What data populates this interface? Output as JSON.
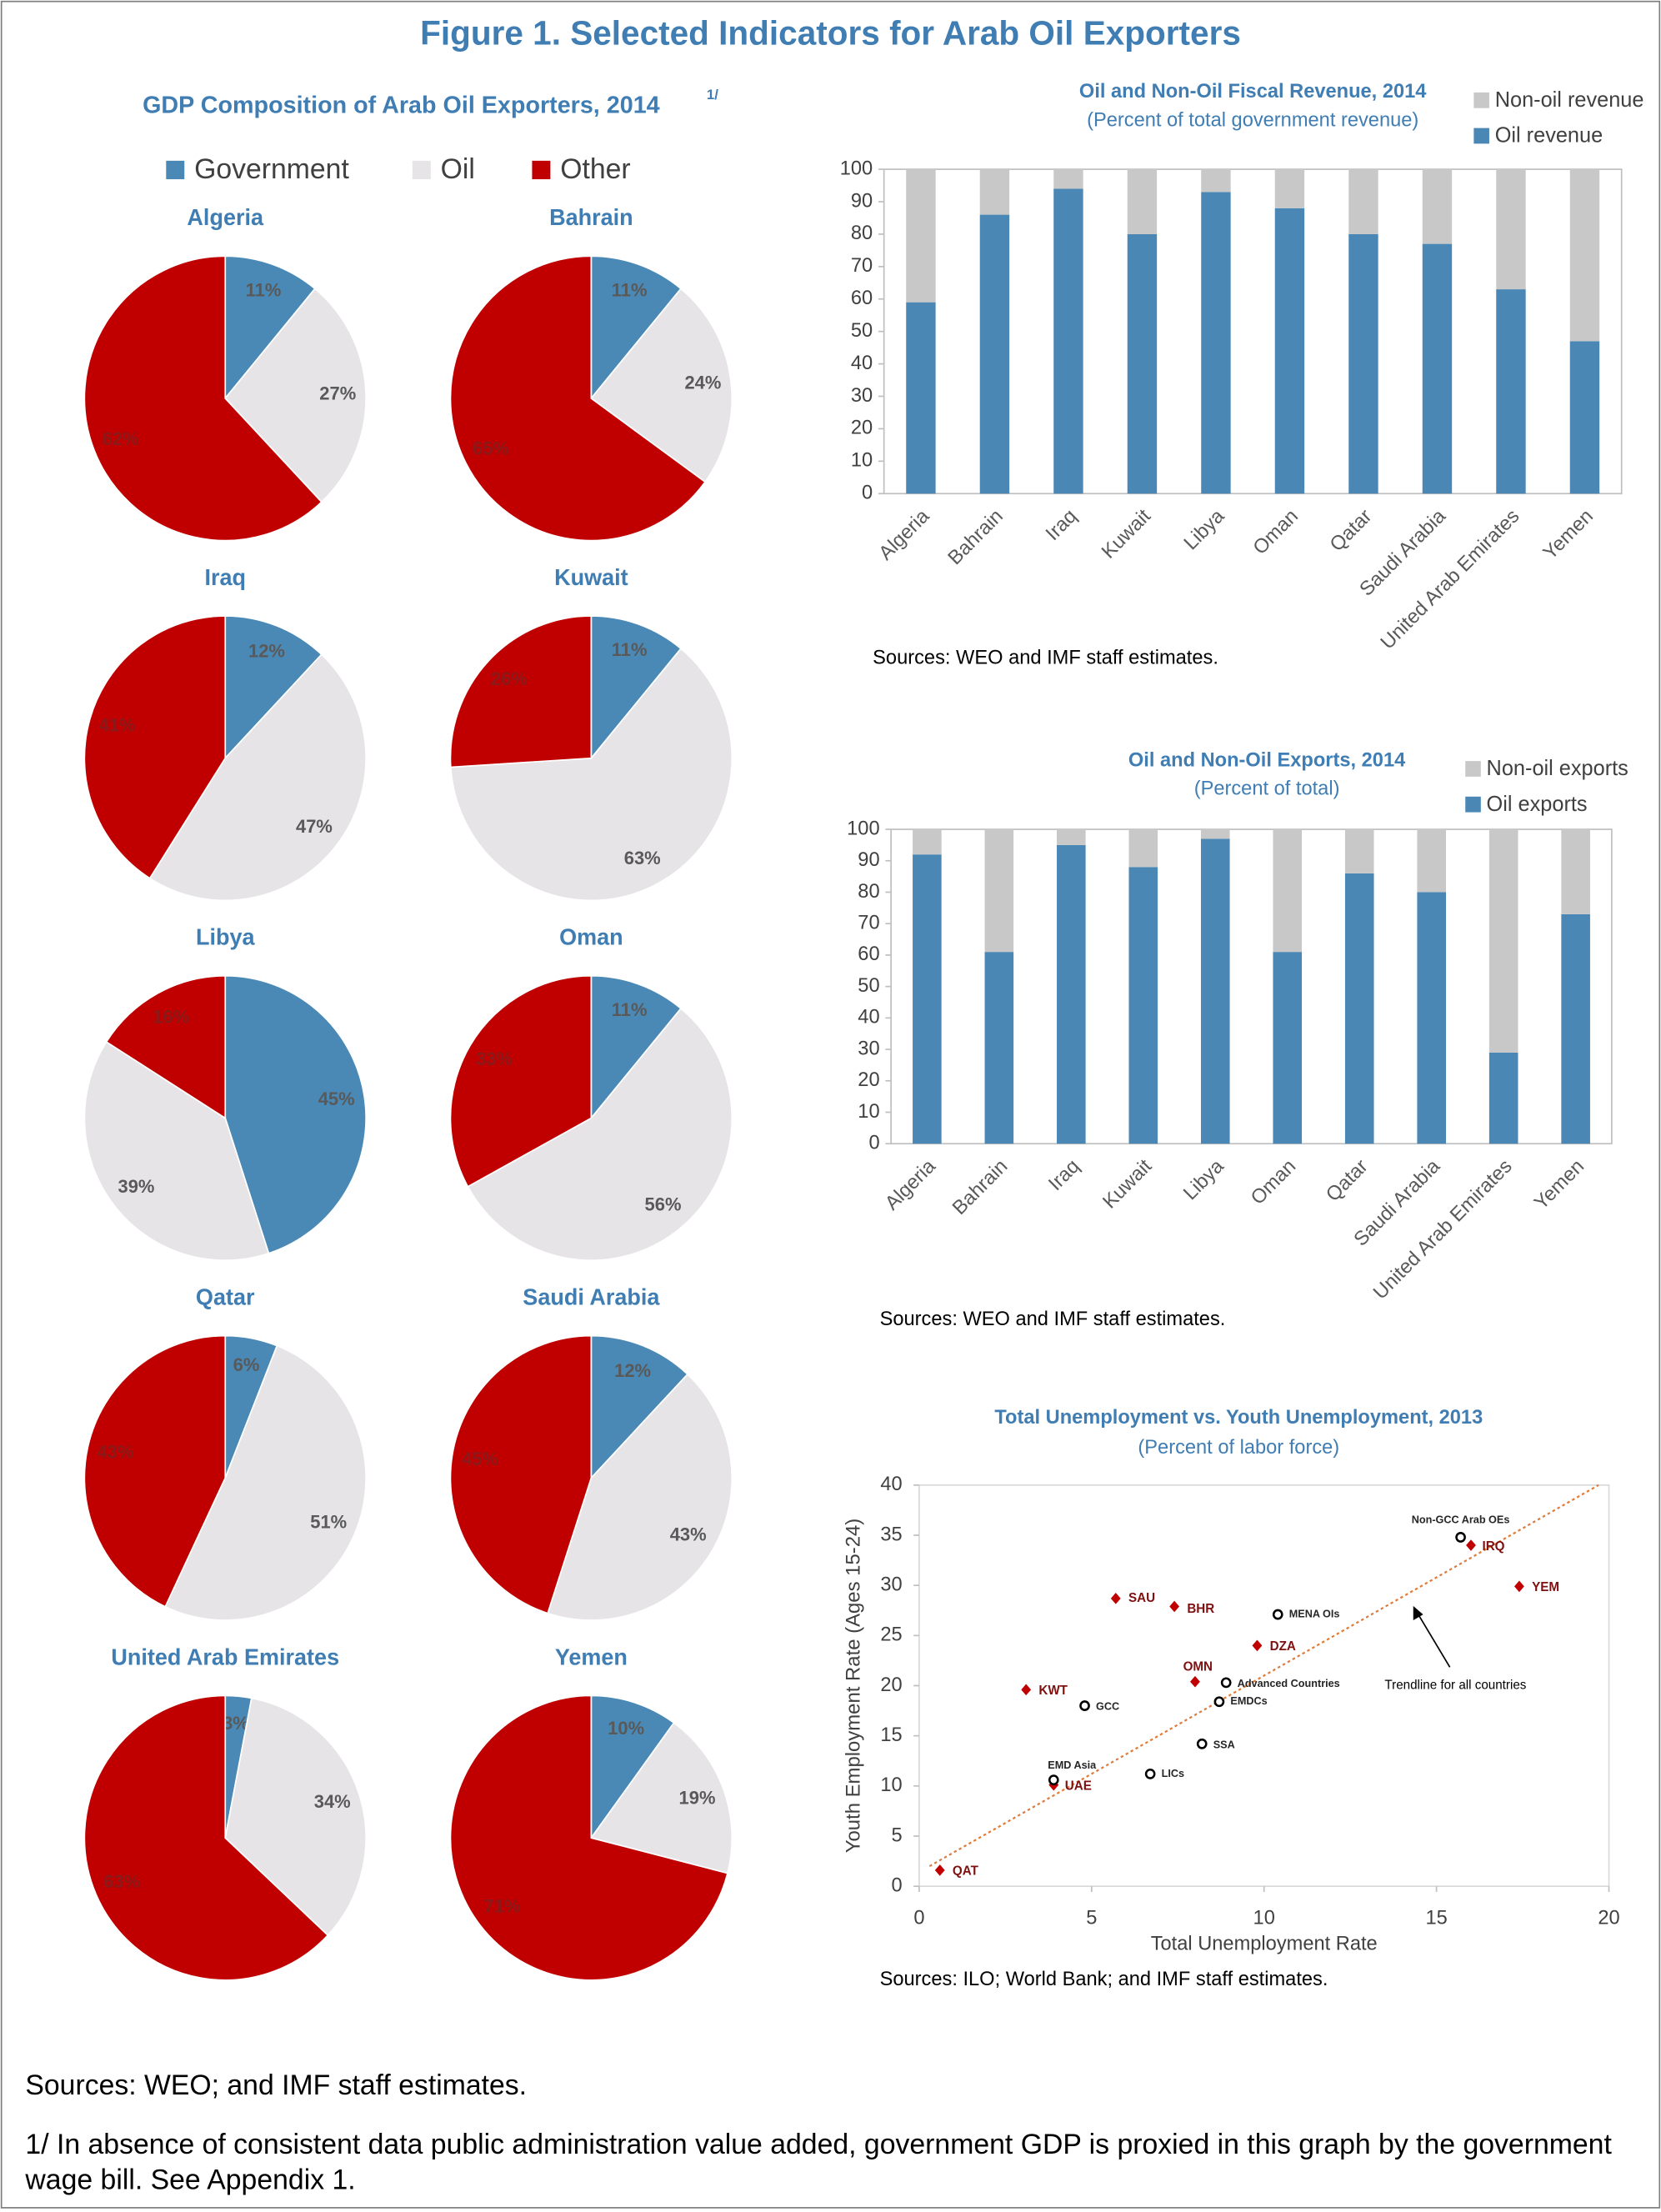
{
  "title": "Figure 1. Selected Indicators for Arab Oil Exporters",
  "notes": [
    "Sources: WEO; and IMF staff estimates.",
    "1/ In absence of consistent data public administration value added, government GDP is proxied in this graph by the government wage bill. See Appendix 1."
  ],
  "chart_data": [
    {
      "type": "pie",
      "title": "GDP Composition of Arab Oil Exporters, 2014",
      "title_note": "1/",
      "labels": [
        "Government",
        "Oil",
        "Other"
      ],
      "colors": [
        "#4a89b5",
        "#e6e4e7",
        "#c00000"
      ],
      "pies": [
        {
          "title": "Algeria",
          "values": [
            11,
            27,
            62
          ],
          "value_labels": [
            "11%",
            "27%",
            "62%"
          ]
        },
        {
          "title": "Bahrain",
          "values": [
            11,
            24,
            65
          ],
          "value_labels": [
            "11%",
            "24%",
            "65%"
          ]
        },
        {
          "title": "Iraq",
          "values": [
            12,
            47,
            41
          ],
          "value_labels": [
            "12%",
            "47%",
            "41%"
          ]
        },
        {
          "title": "Kuwait",
          "values": [
            11,
            63,
            26
          ],
          "value_labels": [
            "11%",
            "63%",
            "26%"
          ]
        },
        {
          "title": "Libya",
          "values": [
            45,
            39,
            16
          ],
          "value_labels": [
            "45%",
            "39%",
            "16%"
          ]
        },
        {
          "title": "Oman",
          "values": [
            11,
            56,
            33
          ],
          "value_labels": [
            "11%",
            "56%",
            "33%"
          ]
        },
        {
          "title": "Qatar",
          "values": [
            6,
            51,
            43
          ],
          "value_labels": [
            "6%",
            "51%",
            "43%"
          ]
        },
        {
          "title": "Saudi Arabia",
          "values": [
            12,
            43,
            45
          ],
          "value_labels": [
            "12%",
            "43%",
            "45%"
          ]
        },
        {
          "title": "United Arab Emirates",
          "values": [
            3,
            34,
            63
          ],
          "value_labels": [
            "3%",
            "34%",
            "63%"
          ]
        },
        {
          "title": "Yemen",
          "values": [
            10,
            19,
            71
          ],
          "value_labels": [
            "10%",
            "19%",
            "71%"
          ]
        }
      ]
    },
    {
      "type": "stacked_bar",
      "title": "Oil and Non-Oil Fiscal Revenue, 2014",
      "subtitle": "(Percent of total government revenue)",
      "categories": [
        "Algeria",
        "Bahrain",
        "Iraq",
        "Kuwait",
        "Libya",
        "Oman",
        "Qatar",
        "Saudi Arabia",
        "United Arab Emirates",
        "Yemen"
      ],
      "series": [
        {
          "name": "Oil revenue",
          "color": "#4a87b4",
          "values": [
            59,
            86,
            94,
            80,
            93,
            88,
            80,
            77,
            63,
            47
          ]
        },
        {
          "name": "Non-oil revenue",
          "color": "#c8c8c8",
          "values": [
            41,
            14,
            6,
            20,
            7,
            12,
            20,
            23,
            37,
            53
          ]
        }
      ],
      "ylim": [
        0,
        100
      ],
      "yticks": [
        0,
        10,
        20,
        30,
        40,
        50,
        60,
        70,
        80,
        90,
        100
      ],
      "grid": false,
      "source": "Sources: WEO and IMF staff estimates."
    },
    {
      "type": "stacked_bar",
      "title": "Oil and Non-Oil Exports, 2014",
      "subtitle": "(Percent of total)",
      "categories": [
        "Algeria",
        "Bahrain",
        "Iraq",
        "Kuwait",
        "Libya",
        "Oman",
        "Qatar",
        "Saudi Arabia",
        "United Arab Emirates",
        "Yemen"
      ],
      "series": [
        {
          "name": "Oil exports",
          "color": "#4a87b4",
          "values": [
            92,
            61,
            95,
            88,
            97,
            61,
            86,
            80,
            29,
            73
          ]
        },
        {
          "name": "Non-oil exports",
          "color": "#c8c8c8",
          "values": [
            8,
            39,
            5,
            12,
            3,
            39,
            14,
            20,
            71,
            27
          ]
        }
      ],
      "ylim": [
        0,
        100
      ],
      "yticks": [
        0,
        10,
        20,
        30,
        40,
        50,
        60,
        70,
        80,
        90,
        100
      ],
      "grid": false,
      "source": "Sources: WEO and IMF staff estimates."
    },
    {
      "type": "scatter",
      "title": "Total Unemployment vs. Youth Unemployment, 2013",
      "subtitle": "(Percent of labor force)",
      "xlabel": "Total Unemployment Rate",
      "ylabel": "Youth Employment Rate (Ages 15-24)",
      "xlim": [
        0,
        20
      ],
      "xticks": [
        0,
        5,
        10,
        15,
        20
      ],
      "ylim": [
        0,
        40
      ],
      "yticks": [
        0,
        5,
        10,
        15,
        20,
        25,
        30,
        35,
        40
      ],
      "grid": false,
      "series": [
        {
          "color": "#c00000",
          "marker": "diamond",
          "x": [
            0.6,
            3.9,
            3.1,
            5.7,
            7.4,
            8.0,
            9.8,
            16.0,
            17.4
          ],
          "y": [
            1.6,
            10.1,
            19.6,
            28.7,
            27.9,
            20.4,
            24.0,
            34.0,
            29.9
          ],
          "labels": [
            "QAT",
            "UAE",
            "KWT",
            "SAU",
            "BHR",
            "OMN",
            "DZA",
            "IRQ",
            "YEM"
          ]
        },
        {
          "color": "#000000",
          "marker": "circle",
          "x": [
            15.7,
            10.4,
            8.9,
            8.7,
            4.8,
            8.2,
            6.7,
            3.9
          ],
          "y": [
            34.8,
            27.1,
            20.3,
            18.4,
            18.0,
            14.2,
            11.2,
            10.6
          ],
          "labels": [
            "Non-GCC Arab OEs",
            "MENA OIs",
            "Advanced Countries",
            "EMDCs",
            "GCC",
            "SSA",
            "LICs",
            "EMD Asia"
          ]
        }
      ],
      "trendline": {
        "color": "#e07b39",
        "x": [
          0.3,
          19.7
        ],
        "y": [
          2.0,
          40
        ]
      },
      "annotation": "Trendline for all countries",
      "source": "Sources: ILO; World Bank; and IMF staff estimates."
    }
  ]
}
